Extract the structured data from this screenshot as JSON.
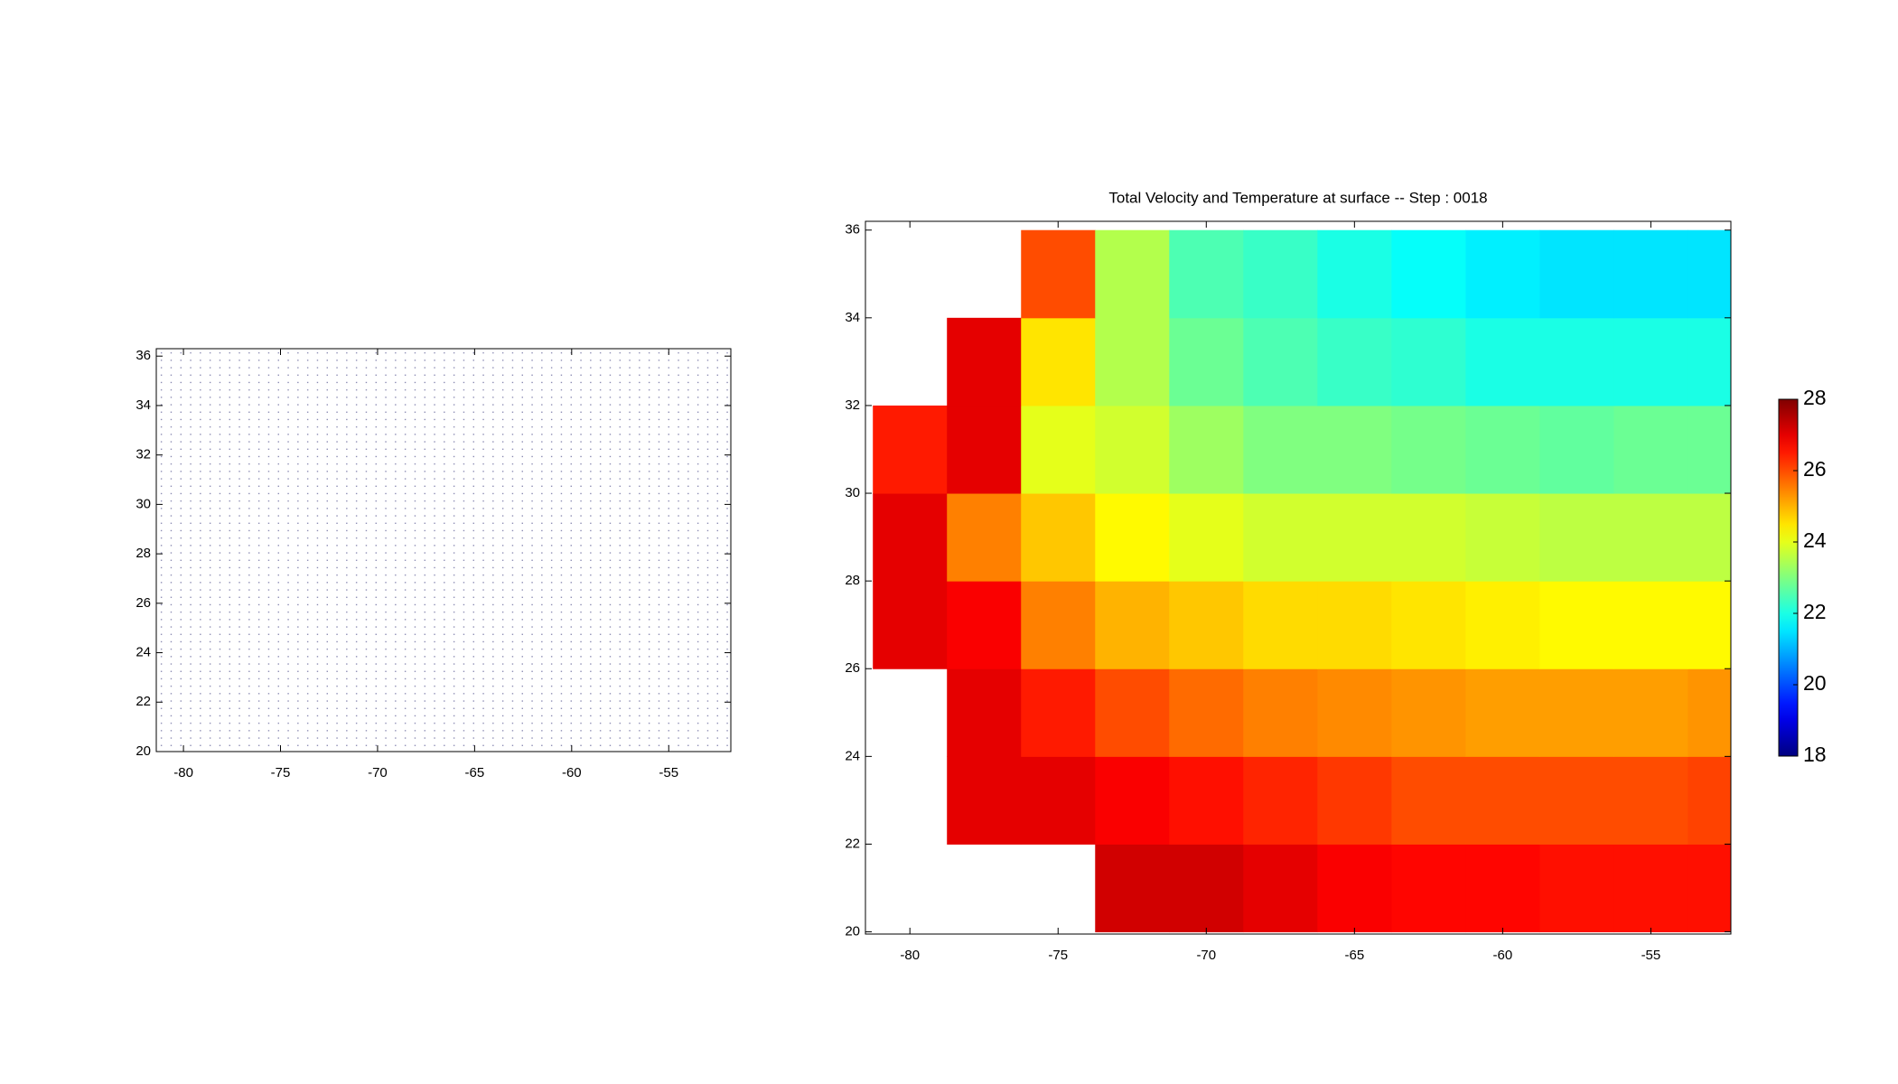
{
  "chart_data": [
    {
      "type": "quiver",
      "xlim": [
        -81.4,
        -51.8
      ],
      "ylim": [
        20,
        36.3
      ],
      "xticks": [
        -80,
        -75,
        -70,
        -65,
        -60,
        -55
      ],
      "yticks": [
        20,
        22,
        24,
        26,
        28,
        30,
        32,
        34,
        36
      ]
    },
    {
      "type": "heatmap",
      "title": "Total Velocity and Temperature at surface -- Step : 0018",
      "x": [
        -80,
        -77.5,
        -75,
        -72.5,
        -70,
        -67.5,
        -65,
        -62.5,
        -60,
        -57.5,
        -55,
        -52.5
      ],
      "y": [
        21,
        23,
        25,
        27,
        29,
        31,
        33,
        35
      ],
      "values": [
        [
          null,
          null,
          null,
          27.2,
          27.2,
          27,
          26.8,
          26.7,
          26.7,
          26.6,
          26.6,
          26.6
        ],
        [
          null,
          27,
          27,
          26.8,
          26.6,
          26.4,
          26.2,
          26,
          26,
          26,
          26,
          26.1
        ],
        [
          null,
          27,
          26.5,
          26,
          25.7,
          25.5,
          25.4,
          25.3,
          25.2,
          25.2,
          25.2,
          25.3
        ],
        [
          27,
          26.8,
          25.5,
          25,
          24.8,
          24.6,
          24.6,
          24.5,
          24.4,
          24.3,
          24.3,
          24.3
        ],
        [
          27,
          25.5,
          24.8,
          24.3,
          24,
          23.8,
          23.8,
          23.8,
          23.7,
          23.6,
          23.6,
          23.6
        ],
        [
          26.5,
          27,
          24,
          23.8,
          23.3,
          23,
          23,
          22.9,
          22.8,
          22.7,
          22.8,
          22.8
        ],
        [
          null,
          27,
          24.5,
          23.5,
          22.8,
          22.5,
          22.3,
          22.2,
          22,
          22,
          22,
          22
        ],
        [
          null,
          null,
          26,
          23.5,
          22.5,
          22.3,
          22,
          21.8,
          21.6,
          21.5,
          21.5,
          21.5
        ]
      ],
      "xlim": [
        -81.5,
        -52.3
      ],
      "ylim": [
        19.95,
        36.2
      ],
      "xticks": [
        -80,
        -75,
        -70,
        -65,
        -60,
        -55
      ],
      "yticks": [
        20,
        22,
        24,
        26,
        28,
        30,
        32,
        34,
        36
      ],
      "colormap": "jet",
      "clim": [
        18,
        28
      ],
      "colorbar_ticks": [
        18,
        20,
        22,
        24,
        26,
        28
      ]
    }
  ]
}
